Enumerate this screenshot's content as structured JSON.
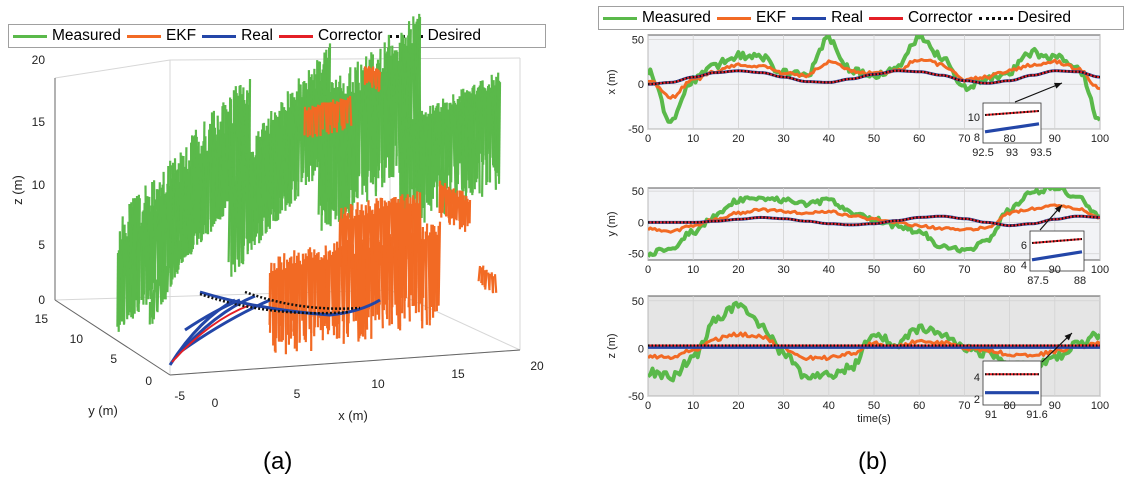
{
  "legend": {
    "items": [
      {
        "label": "Measured",
        "color": "#5ab94a"
      },
      {
        "label": "EKF",
        "color": "#f26a24"
      },
      {
        "label": "Real",
        "color": "#2346a8"
      },
      {
        "label": "Corrector",
        "color": "#e41f26"
      },
      {
        "label": "Desired",
        "color": "#111111",
        "style": "dotted"
      }
    ]
  },
  "panel_labels": {
    "a": "(a)",
    "b": "(b)"
  },
  "chart_data": [
    {
      "type": "scatter",
      "view": "3d",
      "xlabel": "x (m)",
      "ylabel": "y (m)",
      "zlabel": "z (m)",
      "xticks": [
        "0",
        "5",
        "10",
        "15",
        "20"
      ],
      "yticks": [
        "-5",
        "0",
        "5",
        "10",
        "15"
      ],
      "zticks": [
        "0",
        "5",
        "10",
        "15",
        "20"
      ],
      "series": [
        {
          "name": "Measured"
        },
        {
          "name": "EKF"
        },
        {
          "name": "Real"
        },
        {
          "name": "Corrector"
        },
        {
          "name": "Desired"
        }
      ]
    },
    {
      "type": "line",
      "ylabel": "x (m)",
      "xlim": [
        0,
        100
      ],
      "ylim": [
        -50,
        55
      ],
      "yticks": [
        -50,
        0,
        50
      ],
      "xticks": [
        0,
        10,
        20,
        30,
        40,
        50,
        60,
        70,
        80,
        90,
        100
      ],
      "x": [
        0,
        5,
        10,
        15,
        20,
        25,
        30,
        35,
        40,
        45,
        50,
        55,
        60,
        65,
        70,
        75,
        80,
        85,
        90,
        95,
        100
      ],
      "series": [
        {
          "name": "Measured",
          "values": [
            15,
            -40,
            5,
            22,
            32,
            30,
            12,
            10,
            50,
            15,
            10,
            20,
            52,
            30,
            -5,
            5,
            15,
            35,
            30,
            20,
            -40
          ]
        },
        {
          "name": "EKF",
          "values": [
            5,
            -15,
            5,
            15,
            22,
            20,
            12,
            10,
            25,
            15,
            12,
            15,
            28,
            22,
            5,
            8,
            15,
            22,
            25,
            18,
            -5
          ]
        },
        {
          "name": "Real",
          "values": [
            0,
            2,
            8,
            13,
            15,
            13,
            8,
            3,
            2,
            6,
            11,
            15,
            14,
            10,
            4,
            1,
            4,
            10,
            15,
            14,
            8
          ]
        },
        {
          "name": "Corrector",
          "values": [
            0,
            2,
            8,
            13,
            15,
            13,
            8,
            3,
            2,
            6,
            11,
            15,
            14,
            10,
            4,
            1,
            4,
            10,
            15,
            14,
            8
          ]
        },
        {
          "name": "Desired",
          "values": [
            0,
            2,
            8,
            13,
            15,
            13,
            8,
            3,
            2,
            6,
            11,
            15,
            14,
            10,
            4,
            1,
            4,
            10,
            15,
            14,
            8
          ]
        }
      ],
      "inset": {
        "xticks": [
          "92.5",
          "93",
          "93.5"
        ],
        "yticks": [
          "8",
          "10"
        ]
      }
    },
    {
      "type": "line",
      "ylabel": "y (m)",
      "xlim": [
        0,
        100
      ],
      "ylim": [
        -60,
        55
      ],
      "yticks": [
        -50,
        0,
        50
      ],
      "xticks": [
        0,
        10,
        20,
        30,
        40,
        50,
        60,
        70,
        80,
        90,
        100
      ],
      "x": [
        0,
        5,
        10,
        15,
        20,
        25,
        30,
        35,
        40,
        45,
        50,
        55,
        60,
        65,
        70,
        75,
        80,
        85,
        90,
        95,
        100
      ],
      "series": [
        {
          "name": "Measured",
          "values": [
            -50,
            -40,
            -15,
            10,
            35,
            40,
            35,
            30,
            35,
            15,
            5,
            -5,
            -15,
            -40,
            -45,
            -30,
            20,
            48,
            55,
            40,
            10
          ]
        },
        {
          "name": "EKF",
          "values": [
            -10,
            -15,
            -5,
            5,
            15,
            20,
            18,
            15,
            18,
            10,
            5,
            0,
            -5,
            -10,
            -12,
            -8,
            15,
            22,
            28,
            22,
            8
          ]
        },
        {
          "name": "Real",
          "values": [
            0,
            0,
            0,
            2,
            5,
            8,
            6,
            2,
            -2,
            -4,
            -2,
            3,
            8,
            10,
            6,
            0,
            -5,
            -2,
            5,
            10,
            8
          ]
        },
        {
          "name": "Corrector",
          "values": [
            0,
            0,
            0,
            2,
            5,
            8,
            6,
            2,
            -2,
            -4,
            -2,
            3,
            8,
            10,
            6,
            0,
            -5,
            -2,
            5,
            10,
            8
          ]
        },
        {
          "name": "Desired",
          "values": [
            0,
            0,
            0,
            2,
            5,
            8,
            6,
            2,
            -2,
            -4,
            -2,
            3,
            8,
            10,
            6,
            0,
            -5,
            -2,
            5,
            10,
            8
          ]
        }
      ],
      "inset": {
        "xticks": [
          "87.5",
          "88"
        ],
        "yticks": [
          "4",
          "6"
        ]
      }
    },
    {
      "type": "line",
      "ylabel": "z (m)",
      "xlabel": "time(s)",
      "xlim": [
        0,
        100
      ],
      "ylim": [
        -50,
        55
      ],
      "yticks": [
        -50,
        0,
        50
      ],
      "xticks": [
        0,
        10,
        20,
        30,
        40,
        50,
        60,
        70,
        80,
        90,
        100
      ],
      "x": [
        0,
        5,
        10,
        15,
        20,
        25,
        30,
        35,
        40,
        45,
        50,
        55,
        60,
        65,
        70,
        75,
        80,
        85,
        90,
        95,
        100
      ],
      "series": [
        {
          "name": "Measured",
          "values": [
            -25,
            -30,
            -10,
            30,
            45,
            25,
            -5,
            -30,
            -28,
            -20,
            15,
            5,
            20,
            15,
            0,
            -5,
            -15,
            -20,
            -10,
            5,
            15
          ]
        },
        {
          "name": "EKF",
          "values": [
            -8,
            -10,
            -2,
            10,
            15,
            12,
            0,
            -10,
            -10,
            -6,
            5,
            2,
            8,
            6,
            0,
            -2,
            -6,
            -8,
            -3,
            2,
            5
          ]
        },
        {
          "name": "Real",
          "values": [
            1,
            1,
            1,
            1,
            1,
            1,
            1,
            1,
            1,
            1,
            1,
            1,
            1,
            1,
            1,
            1,
            1,
            1,
            1,
            1,
            1
          ]
        },
        {
          "name": "Corrector",
          "values": [
            3,
            3,
            3,
            3,
            3,
            3,
            3,
            3,
            3,
            3,
            3,
            3,
            3,
            3,
            3,
            3,
            3,
            3,
            3,
            3,
            3
          ]
        },
        {
          "name": "Desired",
          "values": [
            3,
            3,
            3,
            3,
            3,
            3,
            3,
            3,
            3,
            3,
            3,
            3,
            3,
            3,
            3,
            3,
            3,
            3,
            3,
            3,
            3
          ]
        }
      ],
      "inset": {
        "xticks": [
          "91",
          "91.6"
        ],
        "yticks": [
          "2",
          "4"
        ]
      }
    }
  ]
}
